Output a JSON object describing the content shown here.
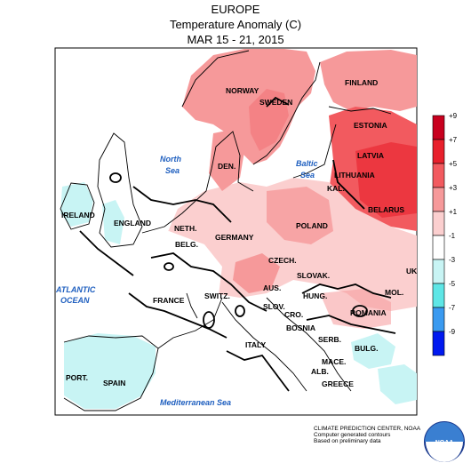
{
  "header": {
    "line1": "EUROPE",
    "line2": "Temperature Anomaly (C)",
    "line3": "MAR 15 - 21, 2015"
  },
  "countries": [
    "NORWAY",
    "SWEDEN",
    "FINLAND",
    "ESTONIA",
    "LATVIA",
    "LITHUANIA",
    "KAL.",
    "BELARUS",
    "DEN.",
    "IRELAND",
    "ENGLAND",
    "NETH.",
    "BELG.",
    "GERMANY",
    "POLAND",
    "CZECH.",
    "SLOVAK.",
    "FRANCE",
    "SWITZ.",
    "AUS.",
    "HUNG.",
    "SLOV.",
    "MOL.",
    "CRO.",
    "ROMANIA",
    "BOSNIA",
    "SERB.",
    "BULG.",
    "ITALY",
    "MACE.",
    "ALB.",
    "GREECE",
    "PORT.",
    "SPAIN",
    "UK"
  ],
  "seas": {
    "north": [
      "North",
      "Sea"
    ],
    "baltic": [
      "Baltic",
      "Sea"
    ],
    "atlantic": [
      "ATLANTIC",
      "OCEAN"
    ],
    "med": "Mediterranean Sea"
  },
  "legend": {
    "labels": [
      "+9",
      "+7",
      "+5",
      "+3",
      "+1",
      "-1",
      "-3",
      "-5",
      "-7",
      "-9"
    ],
    "colors": [
      "#c8001e",
      "#e8202c",
      "#f25a5f",
      "#f6999a",
      "#fbcfcf",
      "#ffffff",
      "#c8f4f4",
      "#5ee6e6",
      "#3a9af0",
      "#0019f0"
    ]
  },
  "credit": {
    "line1": "CLIMATE PREDICTION CENTER, NOAA",
    "line2": "Computer generated contours",
    "line3": "Based on preliminary data"
  },
  "logo_text": "NOAA",
  "colors": {
    "warm1": "#fbcfcf",
    "warm2": "#f6999a",
    "warm3": "#f25a5f",
    "cool1": "#c8f4f4",
    "land": "#ffffff"
  }
}
